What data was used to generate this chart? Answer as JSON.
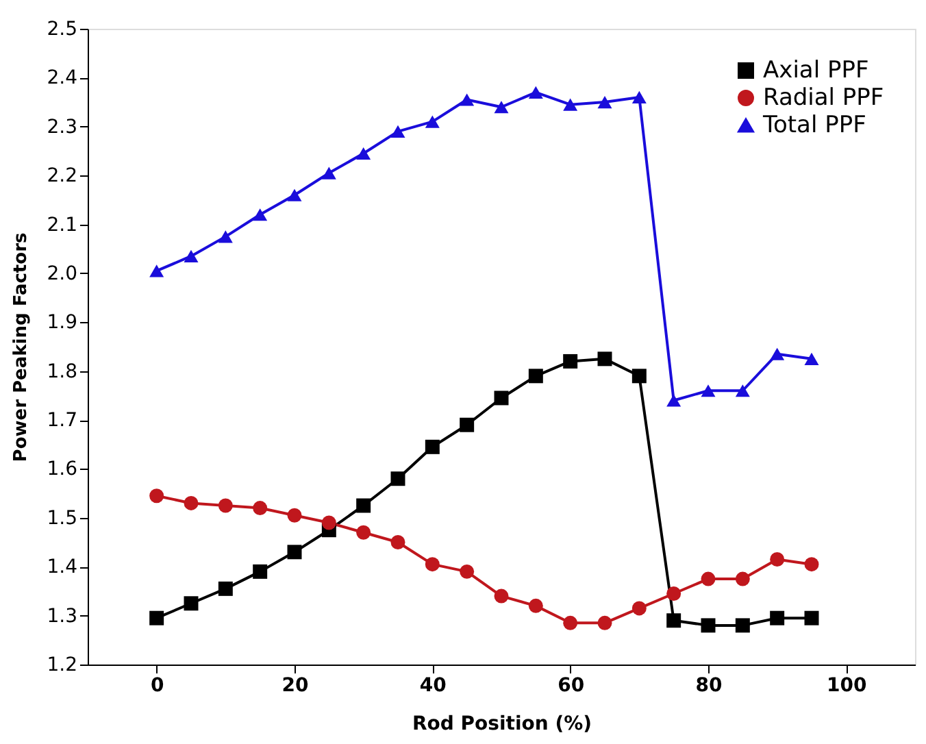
{
  "chart_data": {
    "type": "line",
    "xlabel": "Rod Position (%)",
    "ylabel": "Power Peaking Factors",
    "x": [
      0,
      5,
      10,
      15,
      20,
      25,
      30,
      35,
      40,
      45,
      50,
      55,
      60,
      65,
      70,
      75,
      80,
      85,
      90,
      95
    ],
    "series": [
      {
        "name": "Axial PPF",
        "color": "#000000",
        "marker": "square",
        "values": [
          1.295,
          1.325,
          1.355,
          1.39,
          1.43,
          1.475,
          1.525,
          1.58,
          1.645,
          1.69,
          1.745,
          1.79,
          1.82,
          1.825,
          1.79,
          1.29,
          1.28,
          1.28,
          1.295,
          1.295
        ]
      },
      {
        "name": "Radial PPF",
        "color": "#c0171d",
        "marker": "circle",
        "values": [
          1.545,
          1.53,
          1.525,
          1.52,
          1.505,
          1.49,
          1.47,
          1.45,
          1.405,
          1.39,
          1.34,
          1.32,
          1.285,
          1.285,
          1.315,
          1.345,
          1.375,
          1.375,
          1.415,
          1.405
        ]
      },
      {
        "name": "Total PPF",
        "color": "#1a0ddb",
        "marker": "triangle",
        "values": [
          2.005,
          2.035,
          2.075,
          2.12,
          2.16,
          2.205,
          2.245,
          2.29,
          2.31,
          2.355,
          2.34,
          2.37,
          2.345,
          2.35,
          2.36,
          1.74,
          1.76,
          1.76,
          1.835,
          1.825
        ]
      }
    ],
    "xlim": [
      -10,
      110
    ],
    "xticks": [
      0,
      20,
      40,
      60,
      80,
      100
    ],
    "ylim": [
      1.2,
      2.5
    ],
    "yticks": [
      1.2,
      1.3,
      1.4,
      1.5,
      1.6,
      1.7,
      1.8,
      1.9,
      {
        "value": 2.0,
        "label": "2.0"
      },
      2.1,
      2.2,
      2.3,
      2.4,
      2.5
    ],
    "legend": "top right",
    "grid": false,
    "line_style": "solid"
  }
}
